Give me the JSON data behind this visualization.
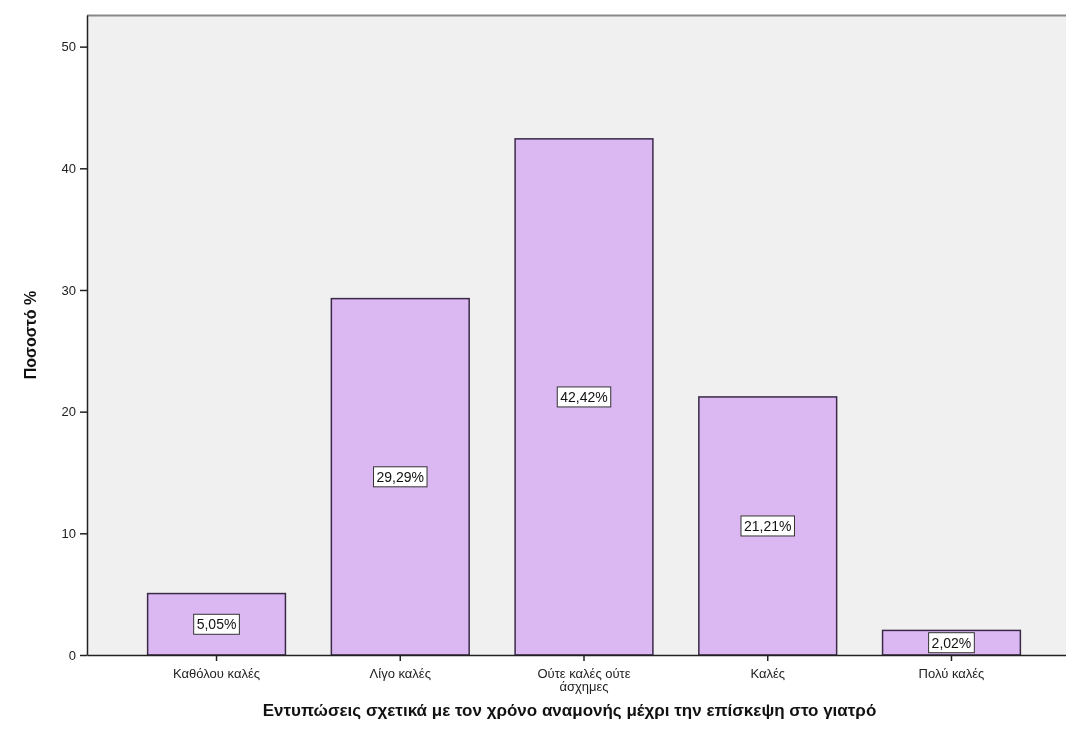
{
  "chart_data": {
    "type": "bar",
    "xlabel": "Εντυπώσεις σχετικά με τον χρόνο αναμονής μέχρι την επίσκεψη στο γιατρό",
    "ylabel": "Ποσοστό %",
    "categories": [
      "Καθόλου καλές",
      "Λίγο καλές",
      "Ούτε καλές ούτε άσχημες",
      "Καλές",
      "Πολύ καλές"
    ],
    "values": [
      5.05,
      29.29,
      42.42,
      21.21,
      2.02
    ],
    "color": "#dcb8f2",
    "value_labels": [
      "5,05%",
      "29,29%",
      "42,42%",
      "21,21%",
      "2,02%"
    ],
    "ylim": [
      0,
      52.6
    ],
    "yticks": [
      0,
      10,
      20,
      30,
      40,
      50
    ]
  }
}
